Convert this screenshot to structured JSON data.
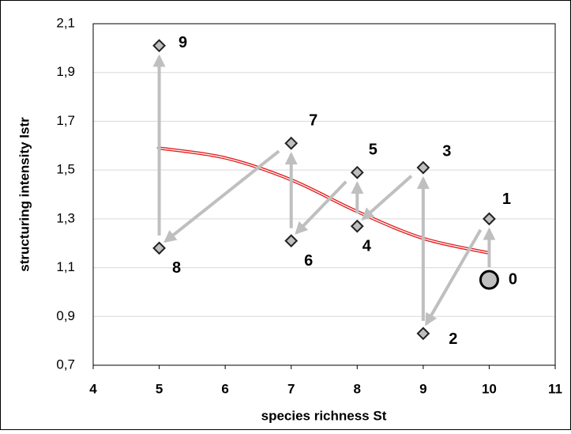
{
  "chart_data": {
    "type": "scatter",
    "x_label": "species richness St",
    "y_label": "structuring intensity Istr",
    "xlim": [
      4,
      11
    ],
    "xticks": [
      4,
      5,
      6,
      7,
      8,
      9,
      10,
      11
    ],
    "ylim": [
      0.7,
      2.1
    ],
    "yticks": [
      {
        "value": 0.7,
        "label": "0,7"
      },
      {
        "value": 0.9,
        "label": "0,9"
      },
      {
        "value": 1.1,
        "label": "1,1"
      },
      {
        "value": 1.3,
        "label": "1,3"
      },
      {
        "value": 1.5,
        "label": "1,5"
      },
      {
        "value": 1.7,
        "label": "1,7"
      },
      {
        "value": 1.9,
        "label": "1,9"
      },
      {
        "value": 2.1,
        "label": "2,1"
      }
    ],
    "grid": true,
    "series": [
      {
        "color": "#bfbfbf",
        "arrow_color": "#bfbfbf",
        "x": [
          10,
          10,
          9,
          9,
          8,
          8,
          7,
          7,
          5,
          5
        ],
        "values": [
          1.05,
          1.3,
          0.83,
          1.51,
          1.27,
          1.49,
          1.21,
          1.61,
          1.18,
          2.01
        ],
        "labels": [
          "0",
          "1",
          "2",
          "3",
          "4",
          "5",
          "6",
          "7",
          "8",
          "9"
        ]
      }
    ],
    "trend": {
      "color": "#e02020",
      "x": [
        10,
        9,
        8,
        7,
        6,
        5
      ],
      "values": [
        1.16,
        1.22,
        1.33,
        1.46,
        1.55,
        1.59
      ]
    }
  }
}
